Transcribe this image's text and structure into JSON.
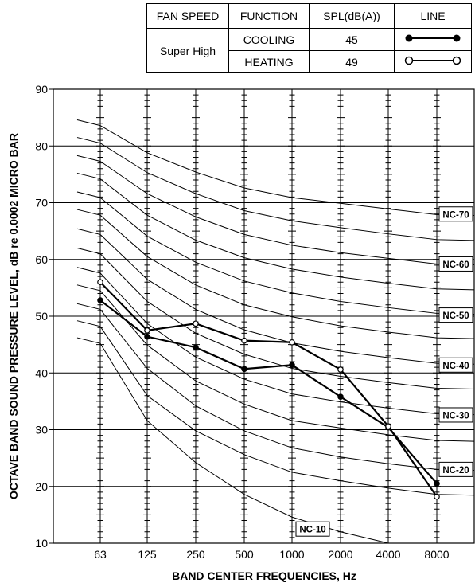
{
  "legend_table": {
    "headers": [
      "FAN SPEED",
      "FUNCTION",
      "SPL(dB(A))",
      "LINE"
    ],
    "fan_speed": "Super High",
    "rows": [
      {
        "function": "COOLING",
        "spl": "45",
        "marker": "filled-circle-line"
      },
      {
        "function": "HEATING",
        "spl": "49",
        "marker": "open-circle-line"
      }
    ]
  },
  "chart_data": {
    "type": "line",
    "xlabel": "BAND CENTER FREQUENCIES, Hz",
    "ylabel": "OCTAVE BAND SOUND PRESSURE LEVEL, dB re 0.0002 MICRO BAR",
    "categories": [
      "63",
      "125",
      "250",
      "500",
      "1000",
      "2000",
      "4000",
      "8000"
    ],
    "y_ticks": [
      10,
      20,
      30,
      40,
      50,
      60,
      70,
      80,
      90
    ],
    "ylim": [
      10,
      90
    ],
    "grid": true,
    "series": [
      {
        "name": "COOLING",
        "marker": "filled",
        "values": [
          52.8,
          46.4,
          44.5,
          40.7,
          41.4,
          35.8,
          30.4,
          20.5
        ]
      },
      {
        "name": "HEATING",
        "marker": "open",
        "values": [
          56,
          47.5,
          48.7,
          45.7,
          45.4,
          40.6,
          30.6,
          18.2
        ]
      }
    ],
    "nc_curve_labels": [
      "NC-70",
      "NC-60",
      "NC-50",
      "NC-40",
      "NC-30",
      "NC-20",
      "NC-10"
    ],
    "nc_curves": [
      {
        "nc": 70,
        "values": [
          83.6,
          78.8,
          75.4,
          72.6,
          70.9,
          69.9,
          68.9,
          67.9
        ]
      },
      {
        "nc": 65,
        "values": [
          80.5,
          75.3,
          71.6,
          68.6,
          66.8,
          65.6,
          64.5,
          63.5
        ]
      },
      {
        "nc": 60,
        "values": [
          77.3,
          71.6,
          67.5,
          64.4,
          62.5,
          61.2,
          60.2,
          59.2
        ]
      },
      {
        "nc": 55,
        "values": [
          74.2,
          67.8,
          63.4,
          60.3,
          58.3,
          56.9,
          55.8,
          54.8
        ]
      },
      {
        "nc": 50,
        "values": [
          70.9,
          64.1,
          59.5,
          56.2,
          54.1,
          52.6,
          51.5,
          50.5
        ]
      },
      {
        "nc": 45,
        "values": [
          67.8,
          60.5,
          55.5,
          52.0,
          49.9,
          48.3,
          47.2,
          46.2
        ]
      },
      {
        "nc": 40,
        "values": [
          64.4,
          56.5,
          51.2,
          47.6,
          45.3,
          43.8,
          42.7,
          41.7
        ]
      },
      {
        "nc": 35,
        "values": [
          61.0,
          52.6,
          47.0,
          43.3,
          40.8,
          39.4,
          38.3,
          37.3
        ]
      },
      {
        "nc": 30,
        "values": [
          57.6,
          48.7,
          42.8,
          38.9,
          36.3,
          34.9,
          33.8,
          32.8
        ]
      },
      {
        "nc": 25,
        "values": [
          54.5,
          44.9,
          38.6,
          34.5,
          31.6,
          30.3,
          29.1,
          28.1
        ]
      },
      {
        "nc": 20,
        "values": [
          51.2,
          40.8,
          34.2,
          29.8,
          26.8,
          25.2,
          24.0,
          23.0
        ]
      },
      {
        "nc": 15,
        "values": [
          48.2,
          36.0,
          29.8,
          25.6,
          22.5,
          21.0,
          19.7,
          18.6
        ]
      },
      {
        "nc": 10,
        "values": [
          45.2,
          31.6,
          24.2,
          18.6,
          14.6,
          12.0,
          10.0,
          10.0
        ]
      }
    ]
  }
}
